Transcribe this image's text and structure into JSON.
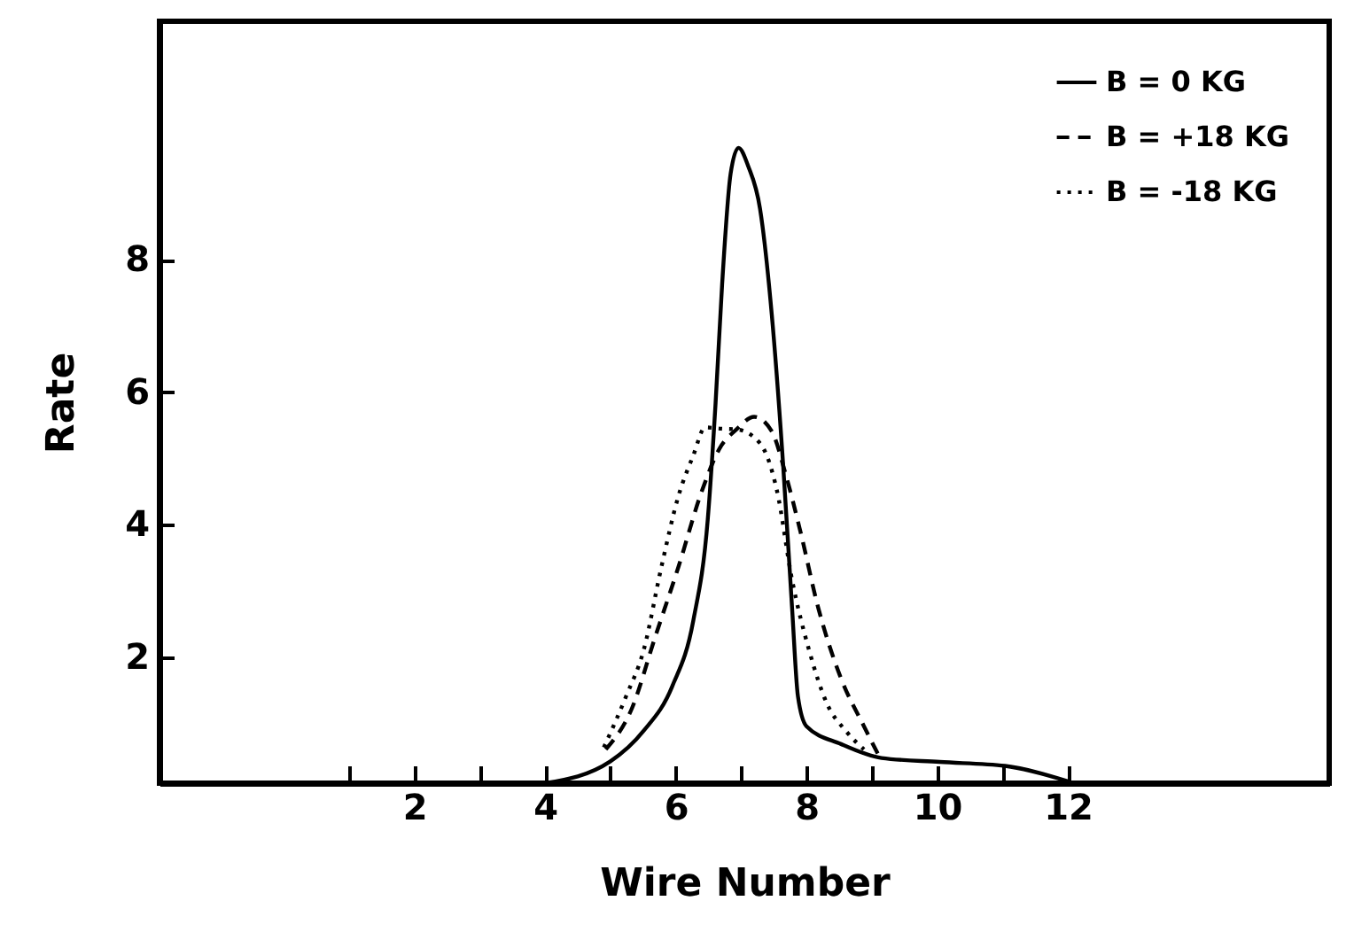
{
  "chart_data": {
    "type": "line",
    "xlabel": "Wire Number",
    "ylabel": "Rate",
    "xlim": [
      -1.9,
      16
    ],
    "ylim": [
      0.1,
      11.6
    ],
    "xticks": [
      {
        "value": 1,
        "label": null
      },
      2,
      {
        "value": 3,
        "label": null
      },
      4,
      {
        "value": 5,
        "label": null
      },
      6,
      {
        "value": 7,
        "label": null
      },
      8,
      {
        "value": 9,
        "label": null
      },
      10,
      {
        "value": 11,
        "label": null
      },
      12
    ],
    "yticks": [
      2,
      4,
      6,
      8
    ],
    "grid": false,
    "legend": "top right",
    "series": [
      {
        "name": "B = 0 KG",
        "color": "#000000",
        "line_style": "solid",
        "x": [
          4.0,
          5.0,
          5.5,
          5.95,
          6.27,
          6.49,
          6.61,
          6.71,
          6.84,
          6.96,
          7.11,
          7.29,
          7.47,
          7.64,
          7.78,
          7.87,
          8.0,
          8.53,
          9.15,
          10.04,
          11.04,
          12.0
        ],
        "values": [
          0.1,
          0.43,
          0.88,
          1.57,
          2.56,
          4.08,
          5.84,
          7.63,
          9.3,
          9.69,
          9.41,
          8.77,
          7.17,
          4.96,
          2.75,
          1.41,
          0.96,
          0.69,
          0.48,
          0.42,
          0.36,
          0.13
        ]
      },
      {
        "name": "B = +18 KG",
        "color": "#000000",
        "line_style": "dashed",
        "x": [
          4.93,
          5.33,
          5.68,
          6.04,
          6.4,
          6.67,
          6.93,
          7.2,
          7.47,
          7.68,
          7.91,
          8.18,
          8.53,
          8.88,
          9.11
        ],
        "values": [
          0.61,
          1.23,
          2.29,
          3.36,
          4.51,
          5.15,
          5.44,
          5.63,
          5.41,
          4.77,
          3.89,
          2.75,
          1.68,
          0.96,
          0.51
        ]
      },
      {
        "name": "B = -18 KG",
        "color": "#000000",
        "line_style": "dotted",
        "x": [
          4.9,
          5.24,
          5.51,
          5.78,
          6.04,
          6.27,
          6.45,
          6.7,
          6.93,
          7.29,
          7.55,
          7.78,
          8.04,
          8.31,
          8.61,
          8.88
        ],
        "values": [
          0.64,
          1.41,
          2.11,
          3.36,
          4.43,
          5.05,
          5.47,
          5.45,
          5.44,
          5.23,
          4.51,
          3.17,
          2.11,
          1.31,
          0.88,
          0.61
        ]
      }
    ]
  }
}
